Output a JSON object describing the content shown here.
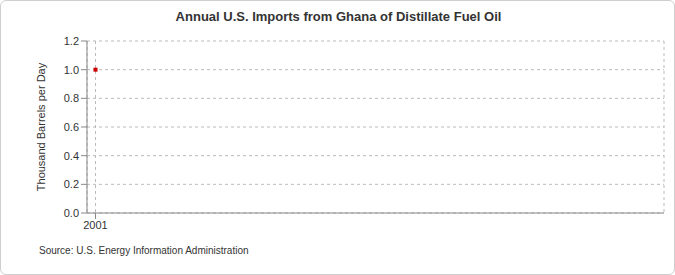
{
  "chart_data": {
    "type": "line",
    "title": "Annual U.S. Imports from Ghana of Distillate Fuel Oil",
    "ylabel": "Thousand Barrels per Day",
    "source": "Source: U.S. Energy Information Administration",
    "categories": [
      "2001"
    ],
    "values": [
      1.0
    ],
    "color": "#cc0000",
    "marker": "square",
    "ylim": [
      0,
      1.2
    ],
    "yticks": [
      {
        "value": 0,
        "label": "0.0"
      },
      {
        "value": 0.2,
        "label": "0.2"
      },
      {
        "value": 0.4,
        "label": "0.4"
      },
      {
        "value": 0.6,
        "label": "0.6"
      },
      {
        "value": 0.8,
        "label": "0.8"
      },
      {
        "value": 1.0,
        "label": "1.0"
      },
      {
        "value": 1.2,
        "label": "1.2"
      }
    ],
    "grid": true
  }
}
